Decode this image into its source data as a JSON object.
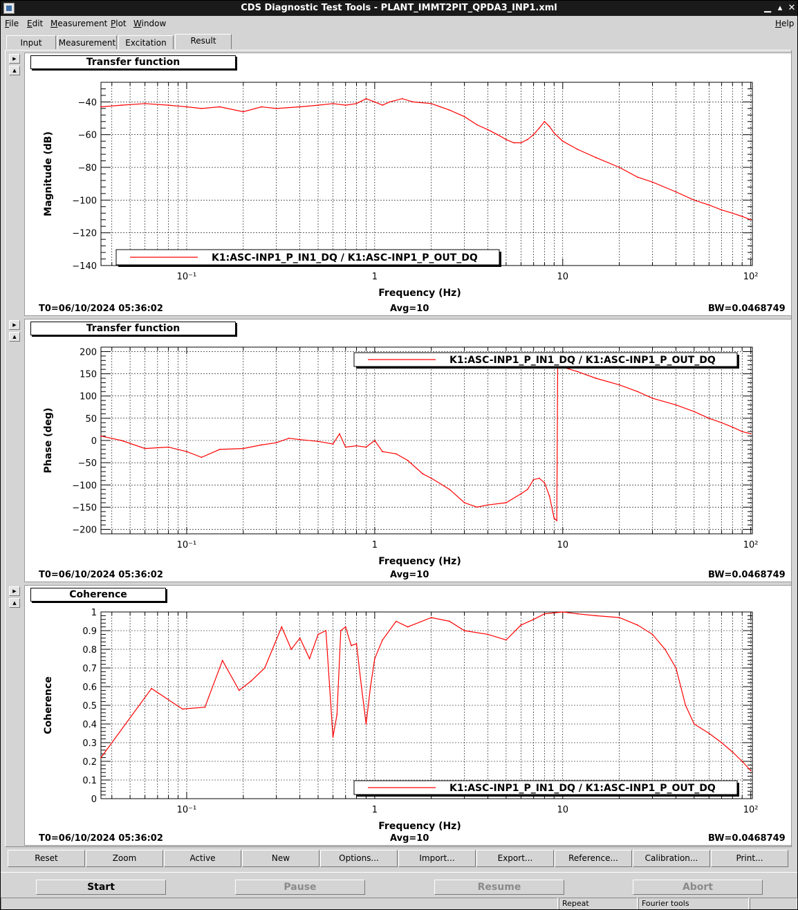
{
  "window": {
    "title": "CDS Diagnostic Test Tools - PLANT_IMMT2PIT_QPDA3_INP1.xml"
  },
  "menu": [
    {
      "label": "File",
      "u": "F",
      "rest": "ile"
    },
    {
      "label": "Edit",
      "u": "E",
      "rest": "dit"
    },
    {
      "label": "Measurement",
      "u": "M",
      "rest": "easurement"
    },
    {
      "label": "Plot",
      "u": "P",
      "rest": "lot"
    },
    {
      "label": "Window",
      "u": "W",
      "rest": "indow"
    }
  ],
  "help": {
    "label": "Help",
    "u": "H",
    "rest": "elp"
  },
  "tabs": [
    "Input",
    "Measurement",
    "Excitation",
    "Result"
  ],
  "active_tab": "Result",
  "panels": [
    {
      "title": "Transfer function",
      "ylabel": "Magnitude (dB)",
      "xlabel": "Frequency (Hz)",
      "legend": "K1:ASC-INP1_P_IN1_DQ / K1:ASC-INP1_P_OUT_DQ",
      "t0": "T0=06/10/2024 05:36:02",
      "avg": "Avg=10",
      "bw": "BW=0.0468749"
    },
    {
      "title": "Transfer function",
      "ylabel": "Phase (deg)",
      "xlabel": "Frequency (Hz)",
      "legend": "K1:ASC-INP1_P_IN1_DQ / K1:ASC-INP1_P_OUT_DQ",
      "t0": "T0=06/10/2024 05:36:02",
      "avg": "Avg=10",
      "bw": "BW=0.0468749"
    },
    {
      "title": "Coherence",
      "ylabel": "Coherence",
      "xlabel": "Frequency (Hz)",
      "legend": "K1:ASC-INP1_P_IN1_DQ / K1:ASC-INP1_P_OUT_DQ",
      "t0": "T0=06/10/2024 05:36:02",
      "avg": "Avg=10",
      "bw": "BW=0.0468749"
    }
  ],
  "plot_buttons": [
    "Reset",
    "Zoom",
    "Active",
    "New",
    "Options...",
    "Import...",
    "Export...",
    "Reference...",
    "Calibration...",
    "Print..."
  ],
  "actions": {
    "start": "Start",
    "pause": "Pause",
    "resume": "Resume",
    "abort": "Abort"
  },
  "status": {
    "repeat": "Repeat",
    "fourier": "Fourier tools"
  },
  "colors": {
    "trace": "#ff0000",
    "grid": "#000000",
    "background": "#d4d4d4"
  },
  "chart_data": [
    {
      "type": "line",
      "title": "Transfer function",
      "xlabel": "Frequency (Hz)",
      "ylabel": "Magnitude (dB)",
      "xscale": "log",
      "xlim": [
        0.035,
        102
      ],
      "ylim": [
        -140,
        -28
      ],
      "xticks": [
        0.1,
        1,
        10,
        100
      ],
      "xticklabels": [
        "10⁻¹",
        "1",
        "10",
        "10²"
      ],
      "yticks": [
        -140,
        -120,
        -100,
        -80,
        -60,
        -40
      ],
      "yticklabels": [
        "−140",
        "−120",
        "−100",
        "−80",
        "−60",
        "−40"
      ],
      "grid": true,
      "legend_position": "bottom-left",
      "series": [
        {
          "name": "K1:ASC-INP1_P_IN1_DQ / K1:ASC-INP1_P_OUT_DQ",
          "x": [
            0.035,
            0.045,
            0.06,
            0.08,
            0.1,
            0.12,
            0.15,
            0.2,
            0.25,
            0.3,
            0.4,
            0.5,
            0.6,
            0.7,
            0.8,
            0.9,
            1.0,
            1.1,
            1.2,
            1.4,
            1.6,
            2.0,
            2.5,
            3.0,
            3.5,
            4.0,
            4.5,
            5.0,
            5.5,
            6.0,
            6.5,
            7.0,
            7.5,
            8.0,
            8.5,
            9.0,
            10,
            12,
            15,
            20,
            25,
            30,
            40,
            50,
            60,
            70,
            80,
            90,
            100
          ],
          "y": [
            -43,
            -42,
            -41,
            -42,
            -43,
            -44,
            -43,
            -46,
            -43,
            -44,
            -43,
            -42,
            -41,
            -42,
            -41,
            -38,
            -40,
            -42,
            -40,
            -38,
            -40,
            -41,
            -45,
            -49,
            -54,
            -57,
            -60,
            -63,
            -65,
            -65,
            -63,
            -60,
            -56,
            -52,
            -55,
            -59,
            -64,
            -69,
            -74,
            -80,
            -86,
            -89,
            -95,
            -100,
            -103,
            -106,
            -108,
            -110,
            -112
          ]
        }
      ]
    },
    {
      "type": "line",
      "title": "Transfer function",
      "xlabel": "Frequency (Hz)",
      "ylabel": "Phase (deg)",
      "xscale": "log",
      "xlim": [
        0.035,
        102
      ],
      "ylim": [
        -210,
        210
      ],
      "xticks": [
        0.1,
        1,
        10,
        100
      ],
      "xticklabels": [
        "10⁻¹",
        "1",
        "10",
        "10²"
      ],
      "yticks": [
        -200,
        -150,
        -100,
        -50,
        0,
        50,
        100,
        150,
        200
      ],
      "yticklabels": [
        "−200",
        "−150",
        "−100",
        "−50",
        "0",
        "50",
        "100",
        "150",
        "200"
      ],
      "grid": true,
      "legend_position": "top-right",
      "series": [
        {
          "name": "K1:ASC-INP1_P_IN1_DQ / K1:ASC-INP1_P_OUT_DQ",
          "x": [
            0.035,
            0.045,
            0.06,
            0.08,
            0.1,
            0.12,
            0.15,
            0.2,
            0.25,
            0.3,
            0.35,
            0.4,
            0.5,
            0.6,
            0.65,
            0.7,
            0.8,
            0.9,
            1.0,
            1.1,
            1.3,
            1.5,
            1.8,
            2.0,
            2.5,
            3.0,
            3.5,
            4.0,
            5.0,
            6.0,
            6.5,
            7.0,
            7.5,
            8.0,
            8.5,
            9.0,
            9.3,
            9.4,
            10,
            12,
            15,
            20,
            25,
            30,
            40,
            50,
            60,
            70,
            80,
            90,
            100
          ],
          "y": [
            10,
            0,
            -18,
            -15,
            -25,
            -38,
            -20,
            -18,
            -10,
            -5,
            5,
            2,
            -2,
            -8,
            15,
            -15,
            -12,
            -15,
            0,
            -25,
            -30,
            -45,
            -75,
            -85,
            -110,
            -140,
            -150,
            -145,
            -140,
            -120,
            -110,
            -88,
            -85,
            -95,
            -125,
            -175,
            -180,
            170,
            165,
            155,
            140,
            125,
            110,
            95,
            80,
            65,
            50,
            40,
            30,
            20,
            15
          ]
        }
      ]
    },
    {
      "type": "line",
      "title": "Coherence",
      "xlabel": "Frequency (Hz)",
      "ylabel": "Coherence",
      "xscale": "log",
      "xlim": [
        0.035,
        102
      ],
      "ylim": [
        0,
        1
      ],
      "xticks": [
        0.1,
        1,
        10,
        100
      ],
      "xticklabels": [
        "10⁻¹",
        "1",
        "10",
        "10²"
      ],
      "yticks": [
        0,
        0.1,
        0.2,
        0.3,
        0.4,
        0.5,
        0.6,
        0.7,
        0.8,
        0.9,
        1
      ],
      "yticklabels": [
        "0",
        "0.1",
        "0.2",
        "0.3",
        "0.4",
        "0.5",
        "0.6",
        "0.7",
        "0.8",
        "0.9",
        "1"
      ],
      "grid": true,
      "legend_position": "bottom-right",
      "series": [
        {
          "name": "K1:ASC-INP1_P_IN1_DQ / K1:ASC-INP1_P_OUT_DQ",
          "x": [
            0.035,
            0.065,
            0.095,
            0.125,
            0.155,
            0.19,
            0.22,
            0.26,
            0.32,
            0.36,
            0.4,
            0.45,
            0.5,
            0.55,
            0.6,
            0.63,
            0.66,
            0.7,
            0.75,
            0.8,
            0.85,
            0.9,
            0.95,
            1.0,
            1.1,
            1.3,
            1.5,
            2.0,
            2.5,
            3.0,
            4.0,
            5.0,
            6.0,
            7.0,
            8.0,
            10,
            12,
            15,
            20,
            25,
            30,
            35,
            40,
            45,
            50,
            60,
            70,
            80,
            90,
            100
          ],
          "y": [
            0.22,
            0.59,
            0.48,
            0.49,
            0.74,
            0.58,
            0.63,
            0.7,
            0.92,
            0.8,
            0.86,
            0.75,
            0.88,
            0.9,
            0.33,
            0.45,
            0.9,
            0.92,
            0.82,
            0.83,
            0.6,
            0.4,
            0.6,
            0.75,
            0.85,
            0.95,
            0.92,
            0.97,
            0.95,
            0.9,
            0.88,
            0.85,
            0.93,
            0.96,
            0.99,
            1.0,
            0.99,
            0.98,
            0.97,
            0.93,
            0.88,
            0.8,
            0.7,
            0.5,
            0.4,
            0.35,
            0.3,
            0.25,
            0.2,
            0.15
          ]
        }
      ]
    }
  ]
}
